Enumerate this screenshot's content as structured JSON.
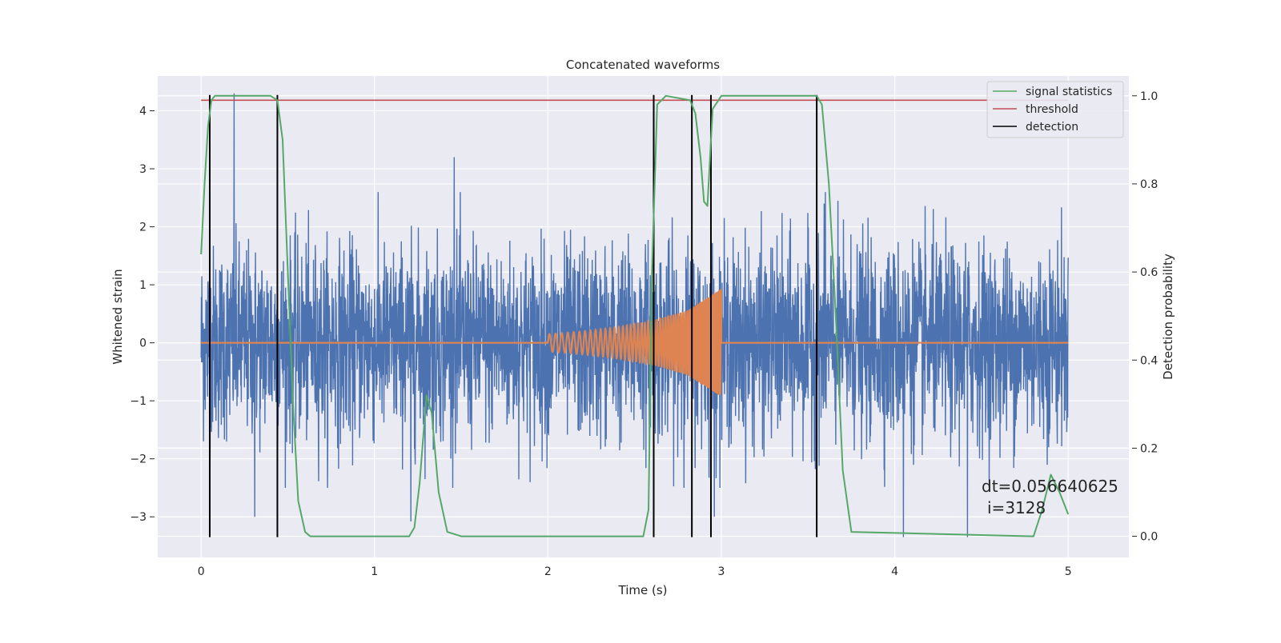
{
  "chart_data": {
    "type": "line",
    "title": "Concatenated waveforms",
    "xlabel": "Time (s)",
    "ylabel": "Whitened strain",
    "y2label": "Detection probability",
    "xlim": [
      -0.25,
      5.35
    ],
    "ylim": [
      -3.7,
      4.6
    ],
    "y2lim": [
      -0.048,
      1.045
    ],
    "xticks": [
      0,
      1,
      2,
      3,
      4,
      5
    ],
    "yticks": [
      -3,
      -2,
      -1,
      0,
      1,
      2,
      3,
      4
    ],
    "y2ticks": [
      0.0,
      0.2,
      0.4,
      0.6,
      0.8,
      1.0
    ],
    "grid": true,
    "legend_position": "top-right",
    "colors": {
      "background": "#eaeaf2",
      "strain": "#4c72b0",
      "template": "#dd8452",
      "signal_statistics": "#55a868",
      "threshold": "#c44e52",
      "detection": "#000000"
    },
    "series": [
      {
        "name": "",
        "description_key": "strain",
        "noise_rms": 0.55,
        "max_excursions": [
          [
            0.19,
            4.3
          ],
          [
            0.31,
            -3.0
          ],
          [
            0.73,
            -1.7
          ],
          [
            1.21,
            -3.08
          ],
          [
            1.46,
            3.2
          ],
          [
            2.96,
            -3.0
          ],
          [
            3.6,
            2.6
          ],
          [
            4.05,
            -3.35
          ],
          [
            4.42,
            -3.35
          ]
        ],
        "x_range": [
          0,
          5
        ]
      },
      {
        "name": "",
        "description_key": "template",
        "x": [
          2.0,
          2.2,
          2.4,
          2.6,
          2.8,
          3.0
        ],
        "amplitude": [
          0.15,
          0.2,
          0.27,
          0.38,
          0.55,
          0.93
        ]
      },
      {
        "name": "signal statistics",
        "axis": "right",
        "x": [
          0.0,
          0.02,
          0.04,
          0.06,
          0.08,
          0.1,
          0.4,
          0.44,
          0.47,
          0.5,
          0.53,
          0.56,
          0.6,
          0.63,
          0.67,
          1.2,
          1.23,
          1.26,
          1.3,
          1.33,
          1.37,
          1.42,
          1.5,
          2.55,
          2.58,
          2.6,
          2.63,
          2.68,
          2.82,
          2.85,
          2.88,
          2.9,
          2.92,
          2.95,
          3.0,
          3.55,
          3.58,
          3.62,
          3.66,
          3.7,
          3.75,
          4.8,
          4.85,
          4.9,
          4.95,
          5.0
        ],
        "values": [
          0.64,
          0.8,
          0.93,
          0.99,
          1.0,
          1.0,
          1.0,
          0.99,
          0.9,
          0.6,
          0.3,
          0.08,
          0.01,
          0.0,
          0.0,
          0.0,
          0.02,
          0.12,
          0.32,
          0.28,
          0.1,
          0.01,
          0.0,
          0.0,
          0.06,
          0.6,
          0.98,
          1.0,
          0.99,
          0.96,
          0.86,
          0.76,
          0.75,
          0.97,
          1.0,
          1.0,
          0.98,
          0.8,
          0.5,
          0.15,
          0.01,
          0.0,
          0.06,
          0.14,
          0.1,
          0.05
        ]
      },
      {
        "name": "threshold",
        "axis": "right",
        "x": [
          0,
          5
        ],
        "values": [
          0.99,
          0.99
        ]
      },
      {
        "name": "detection",
        "x": [
          0.05,
          0.44,
          2.61,
          2.83,
          2.94,
          3.55
        ]
      }
    ],
    "legend": [
      "signal statistics",
      "threshold",
      "detection"
    ],
    "annotations": [
      "dt=0.056640625",
      "i=3128"
    ]
  }
}
